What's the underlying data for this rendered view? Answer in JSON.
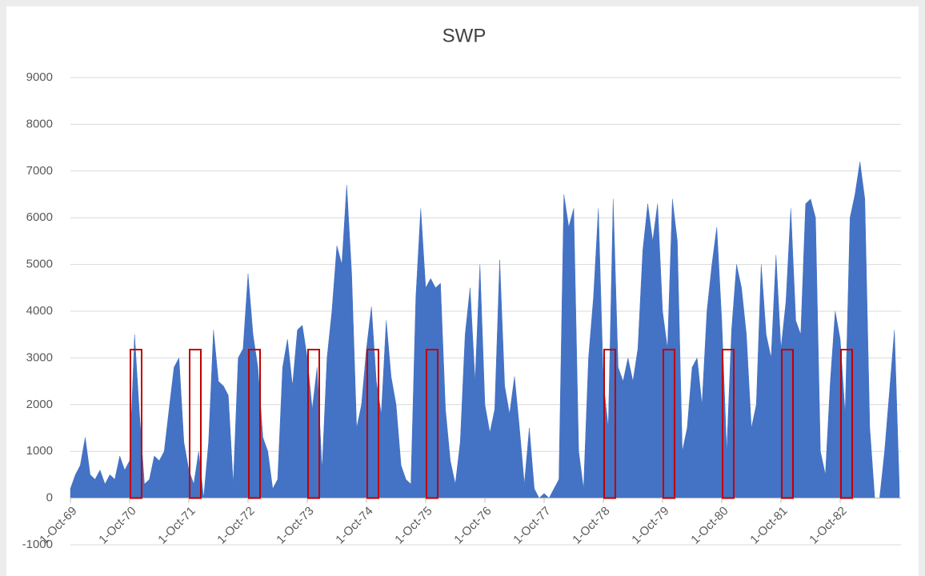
{
  "chart_data": {
    "type": "area",
    "title": "SWP",
    "categories": [
      "1-Oct-69",
      null,
      null,
      null,
      null,
      null,
      null,
      null,
      null,
      null,
      null,
      null,
      "1-Oct-70",
      null,
      null,
      null,
      null,
      null,
      null,
      null,
      null,
      null,
      null,
      null,
      "1-Oct-71",
      null,
      null,
      null,
      null,
      null,
      null,
      null,
      null,
      null,
      null,
      null,
      "1-Oct-72",
      null,
      null,
      null,
      null,
      null,
      null,
      null,
      null,
      null,
      null,
      null,
      "1-Oct-73",
      null,
      null,
      null,
      null,
      null,
      null,
      null,
      null,
      null,
      null,
      null,
      "1-Oct-74",
      null,
      null,
      null,
      null,
      null,
      null,
      null,
      null,
      null,
      null,
      null,
      "1-Oct-75",
      null,
      null,
      null,
      null,
      null,
      null,
      null,
      null,
      null,
      null,
      null,
      "1-Oct-76",
      null,
      null,
      null,
      null,
      null,
      null,
      null,
      null,
      null,
      null,
      null,
      "1-Oct-77",
      null,
      null,
      null,
      null,
      null,
      null,
      null,
      null,
      null,
      null,
      null,
      "1-Oct-78",
      null,
      null,
      null,
      null,
      null,
      null,
      null,
      null,
      null,
      null,
      null,
      "1-Oct-79",
      null,
      null,
      null,
      null,
      null,
      null,
      null,
      null,
      null,
      null,
      null,
      "1-Oct-80",
      null,
      null,
      null,
      null,
      null,
      null,
      null,
      null,
      null,
      null,
      null,
      "1-Oct-81",
      null,
      null,
      null,
      null,
      null,
      null,
      null,
      null,
      null,
      null,
      null,
      "1-Oct-82",
      null,
      null,
      null,
      null,
      null,
      null,
      null,
      null,
      null,
      null,
      null,
      null
    ],
    "series": [
      {
        "name": "SWP",
        "color": "#4472c4",
        "values": [
          200,
          500,
          700,
          1300,
          500,
          400,
          600,
          300,
          500,
          400,
          900,
          600,
          800,
          3500,
          1800,
          300,
          400,
          900,
          800,
          1000,
          1900,
          2800,
          3000,
          1200,
          600,
          300,
          1000,
          0,
          1200,
          3600,
          2500,
          2400,
          2200,
          300,
          3000,
          3200,
          4800,
          3500,
          2800,
          1300,
          1000,
          200,
          400,
          2800,
          3400,
          2400,
          3600,
          3700,
          3000,
          1900,
          2800,
          600,
          3000,
          4000,
          5400,
          5000,
          6700,
          4800,
          1500,
          2000,
          3200,
          4100,
          2500,
          1800,
          3800,
          2600,
          2000,
          700,
          400,
          300,
          4300,
          6200,
          4500,
          4700,
          4500,
          4600,
          1900,
          800,
          300,
          1200,
          3500,
          4500,
          2500,
          5000,
          2000,
          1400,
          1900,
          5100,
          2400,
          1800,
          2600,
          1500,
          300,
          1500,
          200,
          0,
          100,
          0,
          200,
          400,
          6500,
          5800,
          6200,
          1000,
          200,
          3000,
          4300,
          6200,
          2500,
          1500,
          6400,
          2800,
          2500,
          3000,
          2500,
          3200,
          5300,
          6300,
          5500,
          6300,
          4000,
          3200,
          6400,
          5500,
          1000,
          1500,
          2800,
          3000,
          2000,
          4000,
          5000,
          5800,
          3800,
          1000,
          3600,
          5000,
          4500,
          3500,
          1500,
          2000,
          5000,
          3500,
          3000,
          5200,
          3200,
          4200,
          6200,
          3800,
          3500,
          6300,
          6400,
          6000,
          1000,
          500,
          2500,
          4000,
          3400,
          1800,
          6000,
          6500,
          7200,
          6400,
          1500,
          0,
          0,
          1000,
          2300,
          3600,
          200
        ]
      }
    ],
    "ylim": [
      -1000,
      9000
    ],
    "yticks": [
      -1000,
      0,
      1000,
      2000,
      3000,
      4000,
      5000,
      6000,
      7000,
      8000,
      9000
    ],
    "grid": true
  }
}
